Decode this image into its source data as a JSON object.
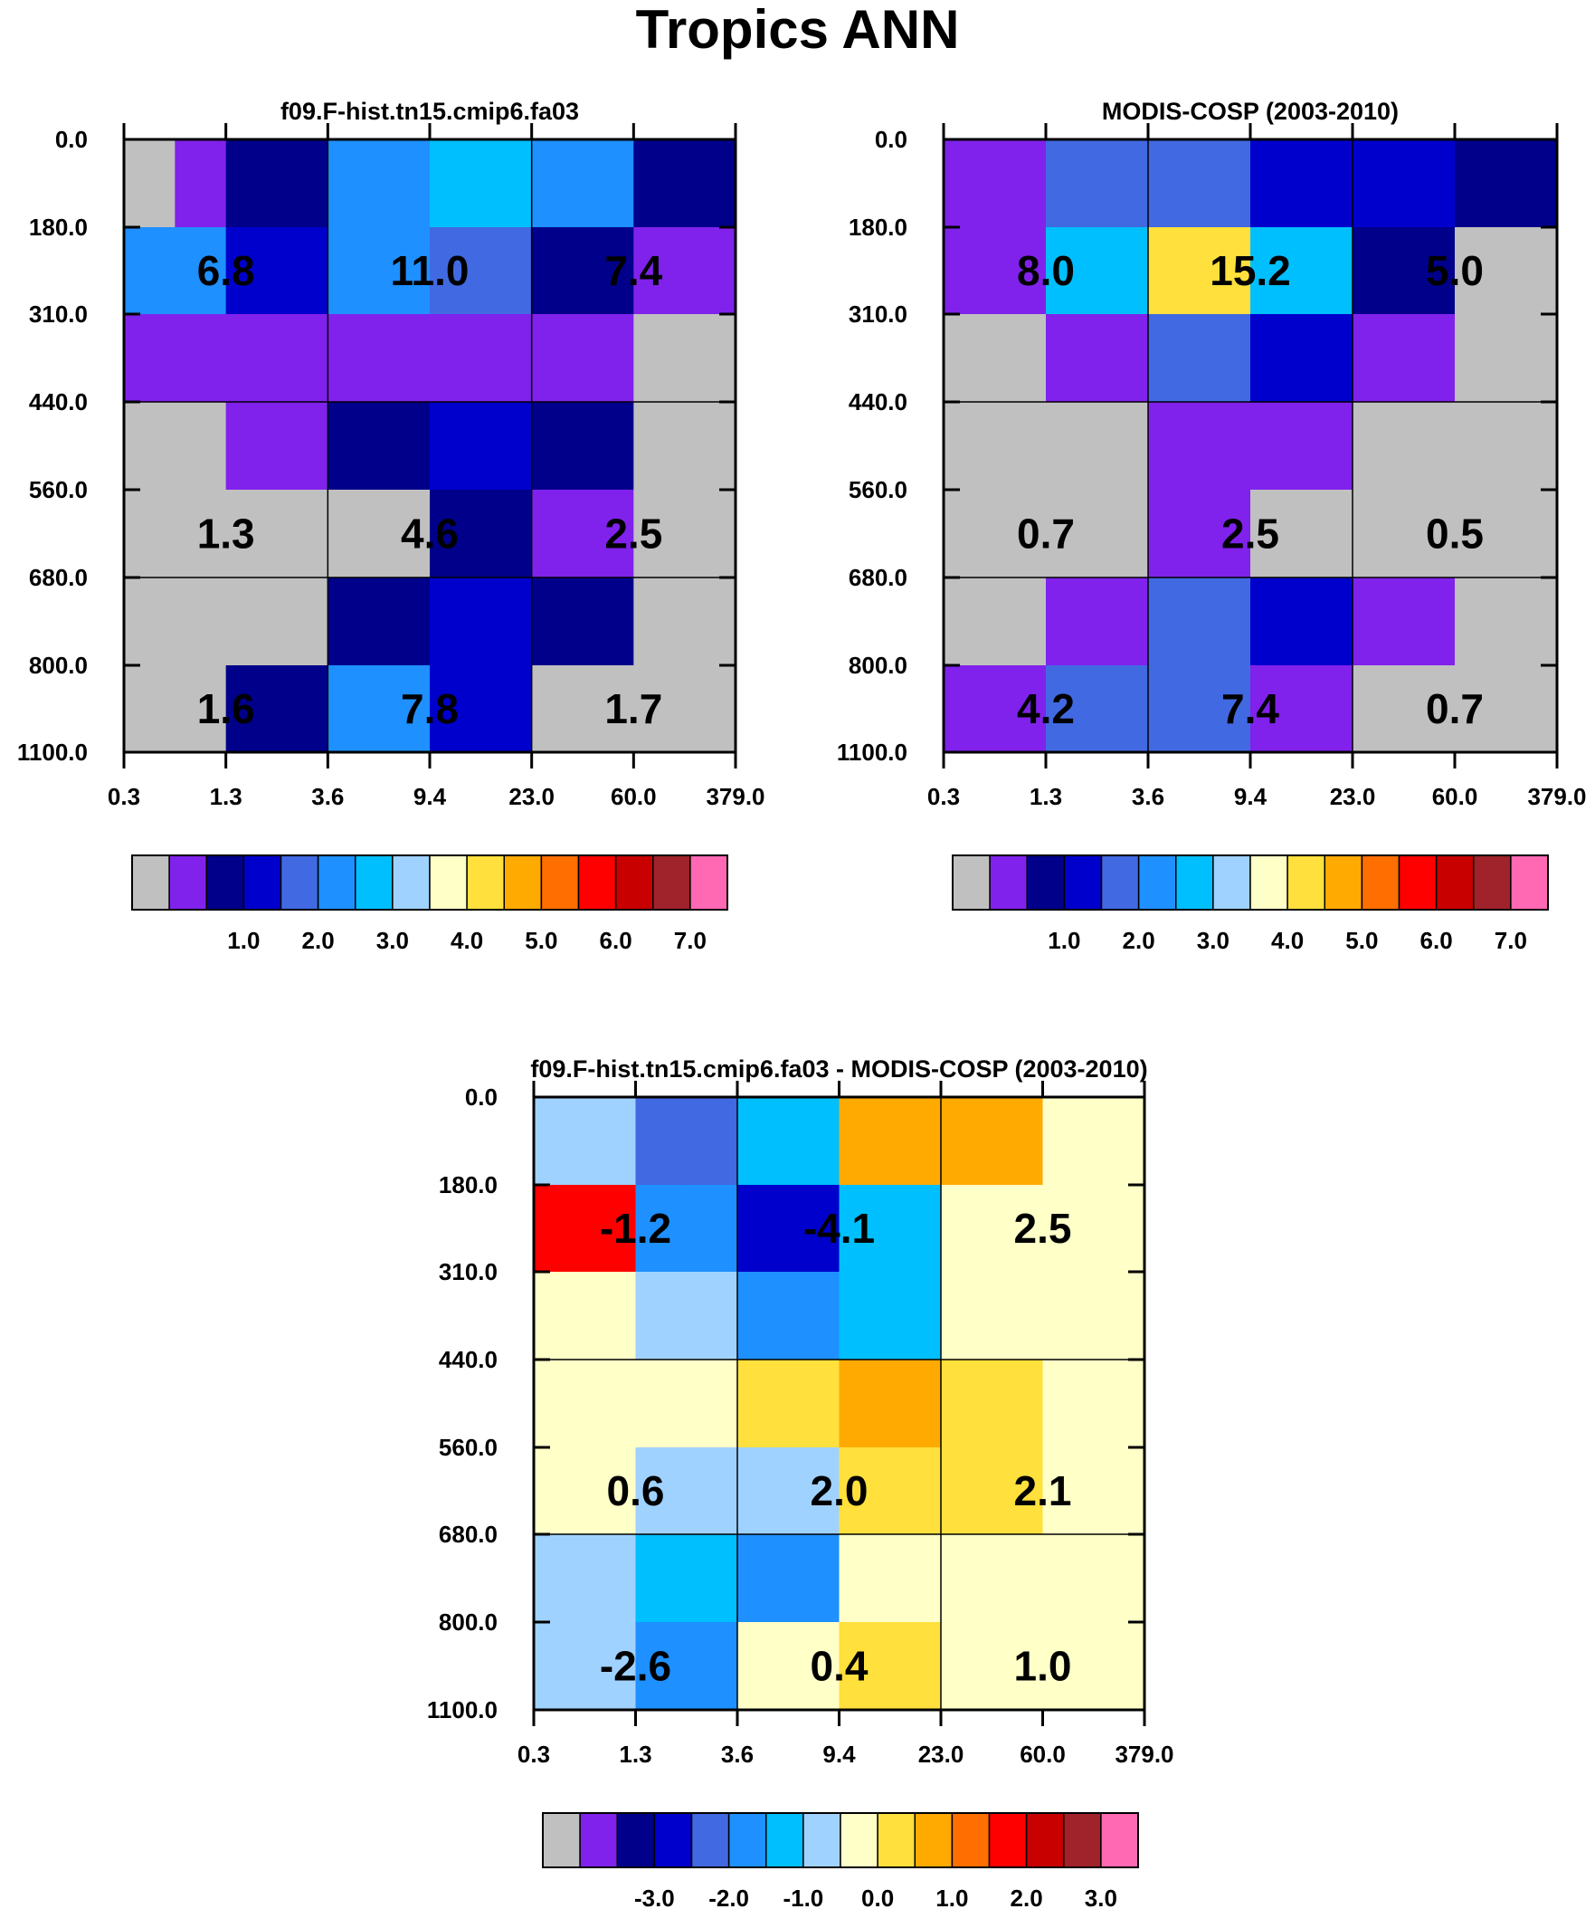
{
  "title": "Tropics ANN",
  "chart_data": [
    {
      "type": "heatmap",
      "title": "f09.F-hist.tn15.cmip6.fa03",
      "x_ticks": [
        "0.3",
        "1.3",
        "3.6",
        "9.4",
        "23.0",
        "60.0",
        "379.0"
      ],
      "y_ticks": [
        "0.0",
        "180.0",
        "310.0",
        "440.0",
        "560.0",
        "680.0",
        "800.0",
        "1100.0"
      ],
      "cell_levels": [
        [
          0,
          1,
          2,
          2,
          5,
          5,
          6,
          6,
          5,
          5,
          2,
          2
        ],
        [
          5,
          5,
          3,
          3,
          5,
          5,
          4,
          4,
          2,
          2,
          1,
          1
        ],
        [
          1,
          1,
          1,
          1,
          1,
          1,
          1,
          1,
          1,
          1,
          0,
          0
        ],
        [
          0,
          0,
          1,
          1,
          2,
          2,
          3,
          3,
          2,
          2,
          0,
          0
        ],
        [
          0,
          0,
          0,
          0,
          0,
          0,
          2,
          2,
          1,
          1,
          0,
          0
        ],
        [
          0,
          0,
          0,
          0,
          2,
          2,
          3,
          3,
          2,
          2,
          0,
          0
        ],
        [
          0,
          0,
          2,
          2,
          5,
          5,
          3,
          3,
          0,
          0,
          0,
          0
        ]
      ],
      "bin_labels": [
        {
          "label": "6.8",
          "row": 1,
          "col": 0
        },
        {
          "label": "11.0",
          "row": 1,
          "col": 1
        },
        {
          "label": "7.4",
          "row": 1,
          "col": 2
        },
        {
          "label": "1.3",
          "row": 4,
          "col": 0
        },
        {
          "label": "4.6",
          "row": 4,
          "col": 1
        },
        {
          "label": "2.5",
          "row": 4,
          "col": 2
        },
        {
          "label": "1.6",
          "row": 6,
          "col": 0
        },
        {
          "label": "7.8",
          "row": 6,
          "col": 1
        },
        {
          "label": "1.7",
          "row": 6,
          "col": 2
        }
      ],
      "colorbar_labels": [
        "1.0",
        "2.0",
        "3.0",
        "4.0",
        "5.0",
        "6.0",
        "7.0"
      ]
    },
    {
      "type": "heatmap",
      "title": "MODIS-COSP (2003-2010)",
      "x_ticks": [
        "0.3",
        "1.3",
        "3.6",
        "9.4",
        "23.0",
        "60.0",
        "379.0"
      ],
      "y_ticks": [
        "0.0",
        "180.0",
        "310.0",
        "440.0",
        "560.0",
        "680.0",
        "800.0",
        "1100.0"
      ],
      "cell_levels": [
        [
          1,
          1,
          4,
          4,
          4,
          4,
          3,
          3,
          3,
          3,
          2,
          2
        ],
        [
          1,
          1,
          6,
          6,
          9,
          9,
          6,
          6,
          2,
          2,
          0,
          0
        ],
        [
          0,
          0,
          1,
          1,
          4,
          4,
          3,
          3,
          1,
          1,
          0,
          0
        ],
        [
          0,
          0,
          0,
          0,
          1,
          1,
          1,
          1,
          0,
          0,
          0,
          0
        ],
        [
          0,
          0,
          0,
          0,
          1,
          1,
          0,
          0,
          0,
          0,
          0,
          0
        ],
        [
          0,
          0,
          1,
          1,
          4,
          4,
          3,
          3,
          1,
          1,
          0,
          0
        ],
        [
          1,
          1,
          4,
          4,
          4,
          4,
          1,
          1,
          0,
          0,
          0,
          0
        ]
      ],
      "bin_labels": [
        {
          "label": "8.0",
          "row": 1,
          "col": 0
        },
        {
          "label": "15.2",
          "row": 1,
          "col": 1
        },
        {
          "label": "5.0",
          "row": 1,
          "col": 2
        },
        {
          "label": "0.7",
          "row": 4,
          "col": 0
        },
        {
          "label": "2.5",
          "row": 4,
          "col": 1
        },
        {
          "label": "0.5",
          "row": 4,
          "col": 2
        },
        {
          "label": "4.2",
          "row": 6,
          "col": 0
        },
        {
          "label": "7.4",
          "row": 6,
          "col": 1
        },
        {
          "label": "0.7",
          "row": 6,
          "col": 2
        }
      ],
      "colorbar_labels": [
        "1.0",
        "2.0",
        "3.0",
        "4.0",
        "5.0",
        "6.0",
        "7.0"
      ]
    },
    {
      "type": "heatmap",
      "title": "f09.F-hist.tn15.cmip6.fa03 - MODIS-COSP (2003-2010)",
      "x_ticks": [
        "0.3",
        "1.3",
        "3.6",
        "9.4",
        "23.0",
        "60.0",
        "379.0"
      ],
      "y_ticks": [
        "0.0",
        "180.0",
        "310.0",
        "440.0",
        "560.0",
        "680.0",
        "800.0",
        "1100.0"
      ],
      "cell_levels": [
        [
          7,
          7,
          4,
          4,
          6,
          6,
          10,
          10,
          10,
          10,
          8,
          8
        ],
        [
          12,
          12,
          5,
          5,
          3,
          3,
          6,
          6,
          8,
          8,
          8,
          8
        ],
        [
          8,
          8,
          7,
          7,
          5,
          5,
          6,
          6,
          8,
          8,
          8,
          8
        ],
        [
          8,
          8,
          8,
          8,
          9,
          9,
          10,
          10,
          9,
          9,
          8,
          8
        ],
        [
          8,
          8,
          7,
          7,
          7,
          7,
          9,
          9,
          9,
          9,
          8,
          8
        ],
        [
          7,
          7,
          6,
          6,
          5,
          5,
          8,
          8,
          8,
          8,
          8,
          8
        ],
        [
          7,
          7,
          5,
          5,
          8,
          8,
          9,
          9,
          8,
          8,
          8,
          8
        ]
      ],
      "bin_labels": [
        {
          "label": "-1.2",
          "row": 1,
          "col": 0
        },
        {
          "label": "-4.1",
          "row": 1,
          "col": 1
        },
        {
          "label": "2.5",
          "row": 1,
          "col": 2
        },
        {
          "label": "0.6",
          "row": 4,
          "col": 0
        },
        {
          "label": "2.0",
          "row": 4,
          "col": 1
        },
        {
          "label": "2.1",
          "row": 4,
          "col": 2
        },
        {
          "label": "-2.6",
          "row": 6,
          "col": 0
        },
        {
          "label": "0.4",
          "row": 6,
          "col": 1
        },
        {
          "label": "1.0",
          "row": 6,
          "col": 2
        }
      ],
      "colorbar_labels": [
        "-3.0",
        "-2.0",
        "-1.0",
        "0.0",
        "1.0",
        "2.0",
        "3.0"
      ]
    }
  ],
  "palette": [
    "#c0c0c0",
    "#8022ec",
    "#00008b",
    "#0000cd",
    "#4169e1",
    "#1e90ff",
    "#00bfff",
    "#a0d2ff",
    "#ffffc8",
    "#ffe03c",
    "#ffaa00",
    "#ff6e00",
    "#ff0000",
    "#c80000",
    "#a0222a",
    "#ff69b4"
  ]
}
